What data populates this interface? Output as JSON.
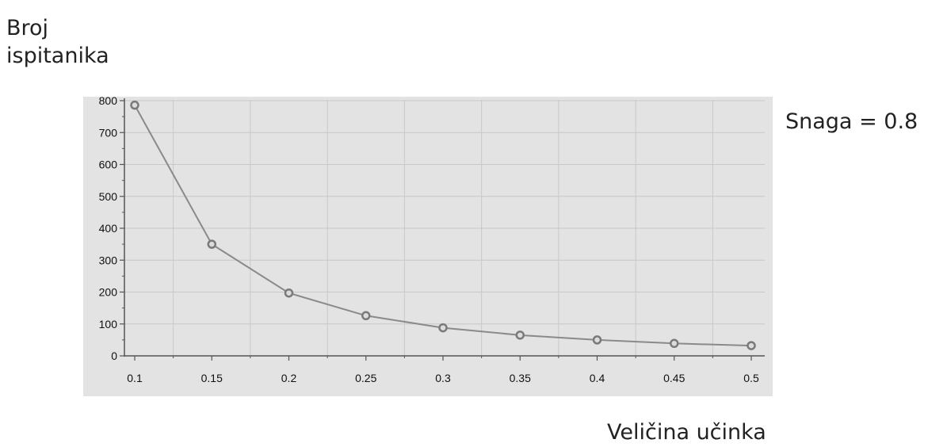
{
  "chart_data": {
    "type": "line",
    "ylabel": "Broj\nispitanika",
    "xlabel": "Veličina učinka",
    "annotation": "Snaga = 0.8",
    "x": [
      0.1,
      0.15,
      0.2,
      0.25,
      0.3,
      0.35,
      0.4,
      0.45,
      0.5
    ],
    "x_tick_labels": [
      "0.1",
      "0.15",
      "0.2",
      "0.25",
      "0.3",
      "0.35",
      "0.4",
      "0.45",
      "0.5"
    ],
    "series": [
      {
        "values": [
          786,
          350,
          197,
          126,
          88,
          65,
          50,
          39,
          32
        ]
      }
    ],
    "xlim": [
      0.1,
      0.5
    ],
    "ylim": [
      0,
      800
    ],
    "y_ticks": [
      0,
      100,
      200,
      300,
      400,
      500,
      600,
      700,
      800
    ],
    "y_tick_labels": [
      "0",
      "100",
      "200",
      "300",
      "400",
      "500",
      "600",
      "700",
      "800"
    ],
    "grid": true,
    "colors": {
      "plot_background": "#e3e3e3",
      "grid": "#c8c8c8",
      "line": "#8a8a8a",
      "marker": "#7a7a7a"
    }
  }
}
